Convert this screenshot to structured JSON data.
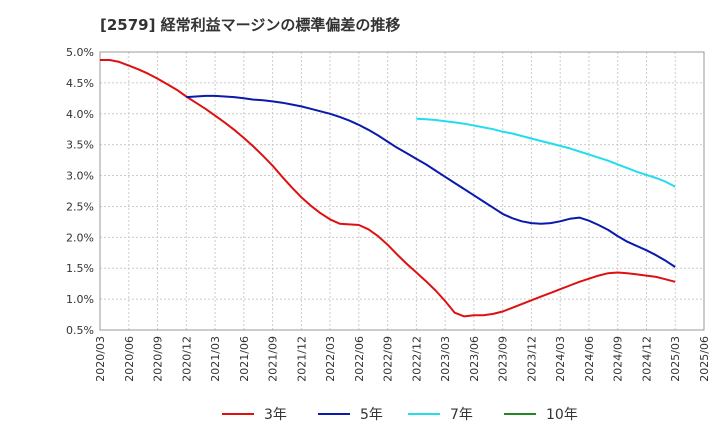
{
  "title": "[2579]  経常利益マージンの標準偏差の推移",
  "chart_data": {
    "type": "line",
    "title": "[2579]  経常利益マージンの標準偏差の推移",
    "xlabel": "",
    "ylabel": "",
    "ylim": [
      0.5,
      5.0
    ],
    "grid": true,
    "legend_placement": "bottom",
    "y_ticks": [
      "0.5%",
      "1.0%",
      "1.5%",
      "2.0%",
      "2.5%",
      "3.0%",
      "3.5%",
      "4.0%",
      "4.5%",
      "5.0%"
    ],
    "x_ticks": [
      "2020/03",
      "2020/06",
      "2020/09",
      "2020/12",
      "2021/03",
      "2021/06",
      "2021/09",
      "2021/12",
      "2022/03",
      "2022/06",
      "2022/09",
      "2022/12",
      "2023/03",
      "2023/06",
      "2023/09",
      "2023/12",
      "2024/03",
      "2024/06",
      "2024/09",
      "2024/12",
      "2025/03",
      "2025/06"
    ],
    "series": [
      {
        "name": "3年",
        "color": "#dd1111",
        "points": [
          [
            "2020/03",
            4.87
          ],
          [
            "2020/04",
            4.87
          ],
          [
            "2020/05",
            4.84
          ],
          [
            "2020/06",
            4.78
          ],
          [
            "2020/07",
            4.72
          ],
          [
            "2020/08",
            4.65
          ],
          [
            "2020/09",
            4.57
          ],
          [
            "2020/10",
            4.48
          ],
          [
            "2020/11",
            4.39
          ],
          [
            "2020/12",
            4.28
          ],
          [
            "2021/01",
            4.18
          ],
          [
            "2021/02",
            4.08
          ],
          [
            "2021/03",
            3.97
          ],
          [
            "2021/04",
            3.86
          ],
          [
            "2021/05",
            3.74
          ],
          [
            "2021/06",
            3.61
          ],
          [
            "2021/07",
            3.47
          ],
          [
            "2021/08",
            3.32
          ],
          [
            "2021/09",
            3.16
          ],
          [
            "2021/10",
            2.98
          ],
          [
            "2021/11",
            2.81
          ],
          [
            "2021/12",
            2.65
          ],
          [
            "2022/01",
            2.51
          ],
          [
            "2022/02",
            2.39
          ],
          [
            "2022/03",
            2.29
          ],
          [
            "2022/04",
            2.22
          ],
          [
            "2022/05",
            2.21
          ],
          [
            "2022/06",
            2.2
          ],
          [
            "2022/07",
            2.13
          ],
          [
            "2022/08",
            2.02
          ],
          [
            "2022/09",
            1.88
          ],
          [
            "2022/10",
            1.72
          ],
          [
            "2022/11",
            1.57
          ],
          [
            "2022/12",
            1.43
          ],
          [
            "2023/01",
            1.29
          ],
          [
            "2023/02",
            1.14
          ],
          [
            "2023/03",
            0.97
          ],
          [
            "2023/04",
            0.78
          ],
          [
            "2023/05",
            0.72
          ],
          [
            "2023/06",
            0.74
          ],
          [
            "2023/07",
            0.74
          ],
          [
            "2023/08",
            0.76
          ],
          [
            "2023/09",
            0.8
          ],
          [
            "2023/10",
            0.86
          ],
          [
            "2023/11",
            0.92
          ],
          [
            "2023/12",
            0.98
          ],
          [
            "2024/01",
            1.04
          ],
          [
            "2024/02",
            1.1
          ],
          [
            "2024/03",
            1.16
          ],
          [
            "2024/04",
            1.22
          ],
          [
            "2024/05",
            1.28
          ],
          [
            "2024/06",
            1.33
          ],
          [
            "2024/07",
            1.38
          ],
          [
            "2024/08",
            1.42
          ],
          [
            "2024/09",
            1.43
          ],
          [
            "2024/10",
            1.42
          ],
          [
            "2024/11",
            1.4
          ],
          [
            "2024/12",
            1.38
          ],
          [
            "2025/01",
            1.36
          ],
          [
            "2025/02",
            1.32
          ],
          [
            "2025/03",
            1.28
          ]
        ]
      },
      {
        "name": "5年",
        "color": "#0a1aaa",
        "points": [
          [
            "2020/12",
            4.27
          ],
          [
            "2021/01",
            4.28
          ],
          [
            "2021/02",
            4.29
          ],
          [
            "2021/03",
            4.29
          ],
          [
            "2021/04",
            4.28
          ],
          [
            "2021/05",
            4.27
          ],
          [
            "2021/06",
            4.25
          ],
          [
            "2021/07",
            4.23
          ],
          [
            "2021/08",
            4.22
          ],
          [
            "2021/09",
            4.2
          ],
          [
            "2021/10",
            4.18
          ],
          [
            "2021/11",
            4.15
          ],
          [
            "2021/12",
            4.12
          ],
          [
            "2022/01",
            4.08
          ],
          [
            "2022/02",
            4.04
          ],
          [
            "2022/03",
            4.0
          ],
          [
            "2022/04",
            3.95
          ],
          [
            "2022/05",
            3.89
          ],
          [
            "2022/06",
            3.82
          ],
          [
            "2022/07",
            3.74
          ],
          [
            "2022/08",
            3.65
          ],
          [
            "2022/09",
            3.55
          ],
          [
            "2022/10",
            3.45
          ],
          [
            "2022/11",
            3.36
          ],
          [
            "2022/12",
            3.27
          ],
          [
            "2023/01",
            3.18
          ],
          [
            "2023/02",
            3.08
          ],
          [
            "2023/03",
            2.98
          ],
          [
            "2023/04",
            2.88
          ],
          [
            "2023/05",
            2.78
          ],
          [
            "2023/06",
            2.68
          ],
          [
            "2023/07",
            2.58
          ],
          [
            "2023/08",
            2.48
          ],
          [
            "2023/09",
            2.38
          ],
          [
            "2023/10",
            2.31
          ],
          [
            "2023/11",
            2.26
          ],
          [
            "2023/12",
            2.23
          ],
          [
            "2024/01",
            2.22
          ],
          [
            "2024/02",
            2.23
          ],
          [
            "2024/03",
            2.26
          ],
          [
            "2024/04",
            2.3
          ],
          [
            "2024/05",
            2.32
          ],
          [
            "2024/06",
            2.27
          ],
          [
            "2024/07",
            2.2
          ],
          [
            "2024/08",
            2.12
          ],
          [
            "2024/09",
            2.02
          ],
          [
            "2024/10",
            1.93
          ],
          [
            "2024/11",
            1.86
          ],
          [
            "2024/12",
            1.79
          ],
          [
            "2025/01",
            1.71
          ],
          [
            "2025/02",
            1.62
          ],
          [
            "2025/03",
            1.52
          ]
        ]
      },
      {
        "name": "7年",
        "color": "#22ddee",
        "points": [
          [
            "2022/12",
            3.92
          ],
          [
            "2023/01",
            3.91
          ],
          [
            "2023/02",
            3.9
          ],
          [
            "2023/03",
            3.88
          ],
          [
            "2023/04",
            3.86
          ],
          [
            "2023/05",
            3.84
          ],
          [
            "2023/06",
            3.81
          ],
          [
            "2023/07",
            3.78
          ],
          [
            "2023/08",
            3.75
          ],
          [
            "2023/09",
            3.71
          ],
          [
            "2023/10",
            3.68
          ],
          [
            "2023/11",
            3.64
          ],
          [
            "2023/12",
            3.6
          ],
          [
            "2024/01",
            3.56
          ],
          [
            "2024/02",
            3.52
          ],
          [
            "2024/03",
            3.48
          ],
          [
            "2024/04",
            3.44
          ],
          [
            "2024/05",
            3.39
          ],
          [
            "2024/06",
            3.34
          ],
          [
            "2024/07",
            3.29
          ],
          [
            "2024/08",
            3.24
          ],
          [
            "2024/09",
            3.18
          ],
          [
            "2024/10",
            3.12
          ],
          [
            "2024/11",
            3.06
          ],
          [
            "2024/12",
            3.01
          ],
          [
            "2025/01",
            2.96
          ],
          [
            "2025/02",
            2.9
          ],
          [
            "2025/03",
            2.82
          ]
        ]
      },
      {
        "name": "10年",
        "color": "#228822",
        "points": []
      }
    ]
  }
}
